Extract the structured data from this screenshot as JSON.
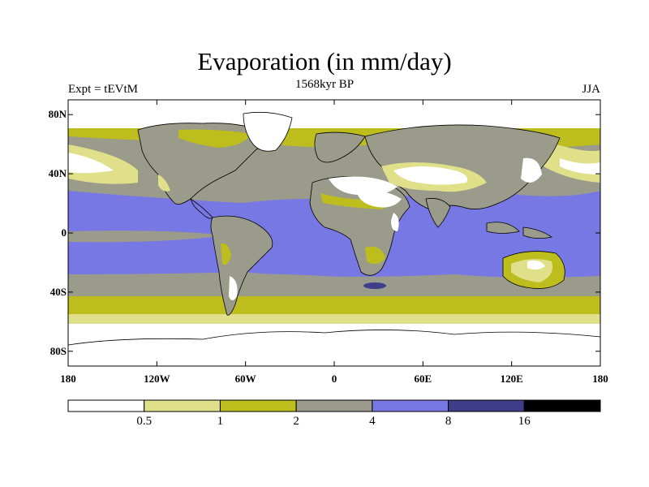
{
  "title": "Evaporation (in mm/day)",
  "left_label": "Expt = tEVtM",
  "center_label": "1568kyr BP",
  "right_label": "JJA",
  "lat_ticks": [
    {
      "label": "80N",
      "lat": 80
    },
    {
      "label": "40N",
      "lat": 40
    },
    {
      "label": "0",
      "lat": 0
    },
    {
      "label": "40S",
      "lat": -40
    },
    {
      "label": "80S",
      "lat": -80
    }
  ],
  "lon_ticks": [
    {
      "label": "180",
      "lon": -180
    },
    {
      "label": "120W",
      "lon": -120
    },
    {
      "label": "60W",
      "lon": -60
    },
    {
      "label": "0",
      "lon": 0
    },
    {
      "label": "60E",
      "lon": 60
    },
    {
      "label": "120E",
      "lon": 120
    },
    {
      "label": "180",
      "lon": 180
    }
  ],
  "colorbar": {
    "colors": [
      "#ffffff",
      "#e1e08a",
      "#bdbd1e",
      "#9b9b8b",
      "#7878e4",
      "#3e3e8a",
      "#000000"
    ],
    "levels": [
      "0.5",
      "1",
      "2",
      "4",
      "8",
      "16"
    ]
  },
  "map_colors": {
    "ocean_warm": "#7878e4",
    "ocean_mid": "#9b9b8b",
    "level_1_2": "#bdbd1e",
    "level_05_1": "#e1e08a",
    "dry": "#ffffff",
    "high": "#3e3e8a",
    "coast": "#000000"
  }
}
